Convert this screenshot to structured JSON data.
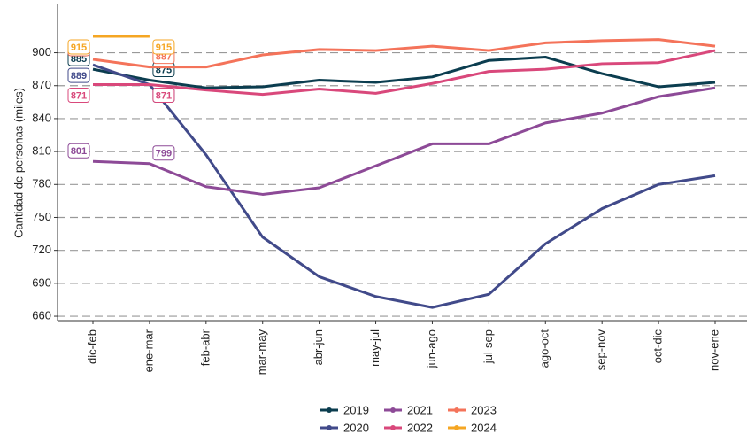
{
  "chart_data": {
    "type": "line",
    "y_label": "Cantidad de personas (miles)",
    "categories": [
      "dic-feb",
      "ene-mar",
      "feb-abr",
      "mar-may",
      "abr-jun",
      "may-jul",
      "jun-ago",
      "jul-sep",
      "ago-oct",
      "sep-nov",
      "oct-dic",
      "nov-ene"
    ],
    "series": [
      {
        "name": "2019",
        "color": "#0b3d4f",
        "values": [
          885,
          875,
          868,
          869,
          875,
          873,
          878,
          893,
          896,
          881,
          869,
          873
        ]
      },
      {
        "name": "2020",
        "color": "#414a8a",
        "values": [
          889,
          871,
          807,
          732,
          696,
          678,
          668,
          680,
          726,
          758,
          780,
          788
        ]
      },
      {
        "name": "2021",
        "color": "#8d4a97",
        "values": [
          801,
          799,
          778,
          771,
          777,
          797,
          817,
          817,
          836,
          845,
          860,
          868
        ]
      },
      {
        "name": "2022",
        "color": "#d9487b",
        "values": [
          871,
          871,
          866,
          862,
          867,
          863,
          872,
          883,
          885,
          890,
          891,
          902
        ]
      },
      {
        "name": "2023",
        "color": "#f4735a",
        "values": [
          894,
          887,
          887,
          898,
          903,
          902,
          906,
          902,
          909,
          911,
          912,
          906
        ]
      },
      {
        "name": "2024",
        "color": "#f5a623",
        "values": [
          915,
          915,
          null,
          null,
          null,
          null,
          null,
          null,
          null,
          null,
          null,
          null
        ]
      }
    ],
    "ylim": [
      656,
      944
    ],
    "yticks": [
      660,
      690,
      720,
      750,
      780,
      810,
      840,
      870,
      900
    ],
    "grid": true
  }
}
